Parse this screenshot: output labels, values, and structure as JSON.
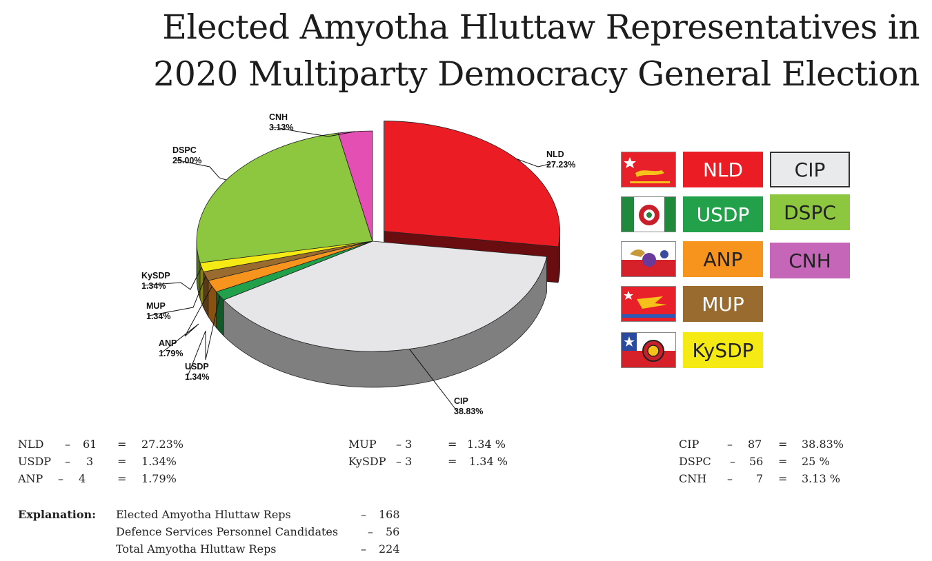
{
  "title": {
    "line1": "Elected Amyotha Hluttaw Representatives in",
    "line2": "2020 Multiparty Democracy General Election"
  },
  "chart_data": {
    "type": "pie",
    "title": "Elected Amyotha Hluttaw Representatives in 2020 Multiparty Democracy General Election",
    "slices": [
      {
        "name": "NLD",
        "value": 27.23,
        "label": "27.23%",
        "seats": 61,
        "color": "#ec1c24",
        "exploded": true
      },
      {
        "name": "CIP",
        "value": 38.83,
        "label": "38.83%",
        "seats": 87,
        "color": "#e6e6e8"
      },
      {
        "name": "USDP",
        "value": 1.34,
        "label": "1.34%",
        "seats": 3,
        "color": "#22a04a"
      },
      {
        "name": "ANP",
        "value": 1.79,
        "label": "1.79%",
        "seats": 4,
        "color": "#f7941d"
      },
      {
        "name": "MUP",
        "value": 1.34,
        "label": "1.34%",
        "seats": 3,
        "color": "#9a6b2f"
      },
      {
        "name": "KySDP",
        "value": 1.34,
        "label": "1.34%",
        "seats": 3,
        "color": "#f5ea14"
      },
      {
        "name": "DSPC",
        "value": 25.0,
        "label": "25.00%",
        "seats": 56,
        "color": "#8dc63f"
      },
      {
        "name": "CNH",
        "value": 3.13,
        "label": "3.13%",
        "seats": 7,
        "color": "#e44fb4"
      }
    ]
  },
  "legend": [
    {
      "name": "NLD",
      "color": "#ec1c24",
      "text_color": "#ffffff",
      "flag": "nld-flag-icon"
    },
    {
      "name": "CIP",
      "color": "#e8eaec",
      "text_color": "#222222",
      "flag": ""
    },
    {
      "name": "USDP",
      "color": "#22a04a",
      "text_color": "#ffffff",
      "flag": "usdp-flag-icon"
    },
    {
      "name": "DSPC",
      "color": "#8dc63f",
      "text_color": "#222222",
      "flag": ""
    },
    {
      "name": "ANP",
      "color": "#f7941d",
      "text_color": "#222222",
      "flag": "anp-flag-icon"
    },
    {
      "name": "CNH",
      "color": "#c566b8",
      "text_color": "#222222",
      "flag": ""
    },
    {
      "name": "MUP",
      "color": "#9a6b2f",
      "text_color": "#ffffff",
      "flag": "mup-flag-icon"
    },
    {
      "name": "KySDP",
      "color": "#f5ea14",
      "text_color": "#222222",
      "flag": "kysdp-flag-icon"
    }
  ],
  "stats": [
    [
      {
        "party": "NLD",
        "dash": "–",
        "seats": "61",
        "eq": "=",
        "pct": "27.23%"
      },
      {
        "party": "USDP",
        "dash": "–",
        "seats": "3",
        "eq": "=",
        "pct": "1.34%"
      },
      {
        "party": "ANP",
        "dash": "–",
        "seats": "4",
        "eq": "=",
        "pct": "1.79%"
      }
    ],
    [
      {
        "party": "MUP",
        "dash": "– 3",
        "seats": "",
        "eq": "=",
        "pct": "1.34 %"
      },
      {
        "party": "KySDP",
        "dash": "– 3",
        "seats": "",
        "eq": "=",
        "pct": "1.34 %"
      }
    ],
    [
      {
        "party": "CIP",
        "dash": "–",
        "seats": "87",
        "eq": "=",
        "pct": "38.83%"
      },
      {
        "party": "DSPC",
        "dash": "–",
        "seats": "56",
        "eq": "=",
        "pct": "25 %"
      },
      {
        "party": "CNH",
        "dash": "–",
        "seats": "7",
        "eq": "=",
        "pct": "3.13 %"
      }
    ]
  ],
  "explanation": {
    "label": "Explanation:",
    "rows": [
      {
        "text": "Elected Amyotha Hluttaw Reps",
        "dash": "–",
        "value": "168"
      },
      {
        "text": "Defence Services Personnel Candidates",
        "dash": "–",
        "value": "56"
      },
      {
        "text": "Total Amyotha Hluttaw Reps",
        "dash": "–",
        "value": "224"
      }
    ]
  }
}
